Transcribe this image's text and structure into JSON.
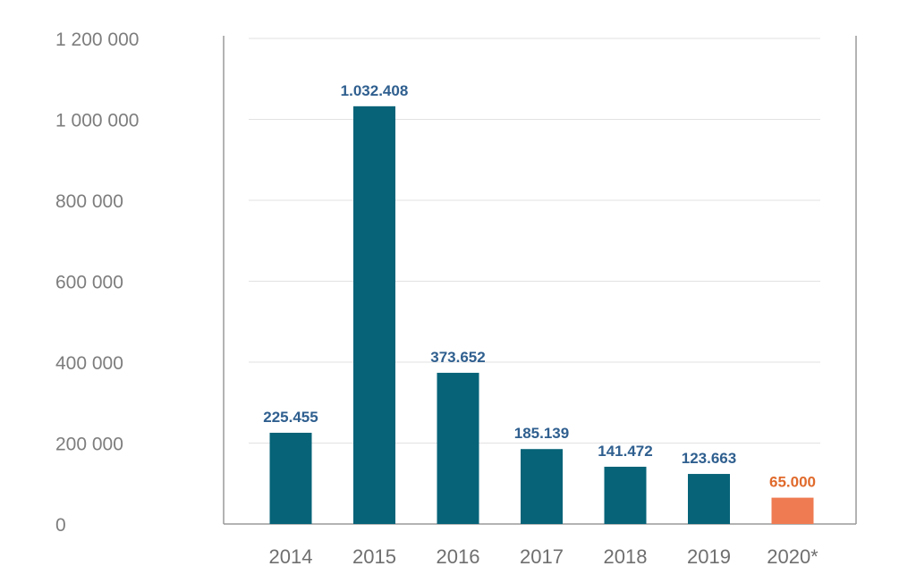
{
  "chart_data": {
    "type": "bar",
    "categories": [
      "2014",
      "2015",
      "2016",
      "2017",
      "2018",
      "2019",
      "2020*"
    ],
    "values": [
      225455,
      1032408,
      373652,
      185139,
      141472,
      123663,
      65000
    ],
    "value_labels": [
      "225.455",
      "1.032.408",
      "373.652",
      "185.139",
      "141.472",
      "123.663",
      "65.000"
    ],
    "yticks": [
      {
        "value": 0,
        "label": "0"
      },
      {
        "value": 200000,
        "label": "200 000"
      },
      {
        "value": 400000,
        "label": "400 000"
      },
      {
        "value": 600000,
        "label": "600 000"
      },
      {
        "value": 800000,
        "label": "800 000"
      },
      {
        "value": 1000000,
        "label": "1 000 000"
      },
      {
        "value": 1200000,
        "label": "1 200 000"
      }
    ],
    "ylim": [
      0,
      1200000
    ],
    "grid": true,
    "legend": "none",
    "highlight_index": 6,
    "colors": {
      "bar": "#066378",
      "highlight": "#ef7b52",
      "label": "#2f5f8f",
      "highlight_label": "#e06a2c",
      "grid": "#e2e2e2",
      "axis": "#9a9a9a"
    }
  }
}
